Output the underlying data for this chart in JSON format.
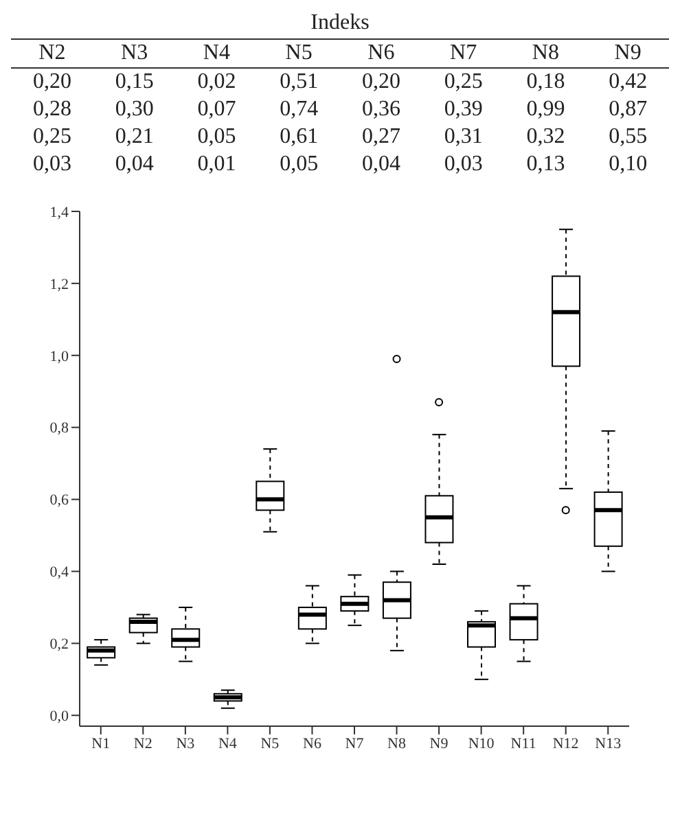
{
  "chart_data": {
    "type": "box",
    "annotations": [
      "Indeks",
      "N2 N3 N4 N5 N6 N7 N8 N9",
      "0,20 0,15 0,02 0,51 0,20 0,25 0,18 0,42",
      "0,28 0,30 0,07 0,74 0,36 0,39 0,99 0,87",
      "0,25 0,21 0,05 0,61 0,27 0,31 0,32 0,55",
      "0,03 0,04 0,01 0,05 0,04 0,03 0,13 0,10"
    ],
    "categories": [
      "N1",
      "N2",
      "N3",
      "N4",
      "N5",
      "N6",
      "N7",
      "N8",
      "N9",
      "N10",
      "N11",
      "N12",
      "N13"
    ],
    "boxes": [
      {
        "low": 0.14,
        "q1": 0.16,
        "median": 0.18,
        "q3": 0.19,
        "high": 0.21
      },
      {
        "low": 0.2,
        "q1": 0.23,
        "median": 0.26,
        "q3": 0.27,
        "high": 0.28
      },
      {
        "low": 0.15,
        "q1": 0.19,
        "median": 0.21,
        "q3": 0.24,
        "high": 0.3
      },
      {
        "low": 0.02,
        "q1": 0.04,
        "median": 0.05,
        "q3": 0.06,
        "high": 0.07
      },
      {
        "low": 0.51,
        "q1": 0.57,
        "median": 0.6,
        "q3": 0.65,
        "high": 0.74
      },
      {
        "low": 0.2,
        "q1": 0.24,
        "median": 0.28,
        "q3": 0.3,
        "high": 0.36
      },
      {
        "low": 0.25,
        "q1": 0.29,
        "median": 0.31,
        "q3": 0.33,
        "high": 0.39
      },
      {
        "low": 0.18,
        "q1": 0.27,
        "median": 0.32,
        "q3": 0.37,
        "high": 0.4,
        "outliers": [
          0.99
        ]
      },
      {
        "low": 0.42,
        "q1": 0.48,
        "median": 0.55,
        "q3": 0.61,
        "high": 0.78,
        "outliers": [
          0.87
        ]
      },
      {
        "low": 0.1,
        "q1": 0.19,
        "median": 0.25,
        "q3": 0.26,
        "high": 0.29
      },
      {
        "low": 0.15,
        "q1": 0.21,
        "median": 0.27,
        "q3": 0.31,
        "high": 0.36
      },
      {
        "low": 0.63,
        "q1": 0.97,
        "median": 1.12,
        "q3": 1.22,
        "high": 1.35,
        "outliers": [
          0.57
        ]
      },
      {
        "low": 0.4,
        "q1": 0.47,
        "median": 0.57,
        "q3": 0.62,
        "high": 0.79
      }
    ],
    "color": "#000000",
    "ylim": [
      -0.03,
      1.4
    ],
    "yticks": [
      {
        "value": 0,
        "label": "0,0"
      },
      {
        "value": 0.2,
        "label": "0,2"
      },
      {
        "value": 0.4,
        "label": "0,4"
      },
      {
        "value": 0.6,
        "label": "0,6"
      },
      {
        "value": 0.8,
        "label": "0,8"
      },
      {
        "value": 1.0,
        "label": "1,0"
      },
      {
        "value": 1.2,
        "label": "1,2"
      },
      {
        "value": 1.4,
        "label": "1,4"
      }
    ],
    "grid": false,
    "legend": false,
    "marker": "circle"
  }
}
